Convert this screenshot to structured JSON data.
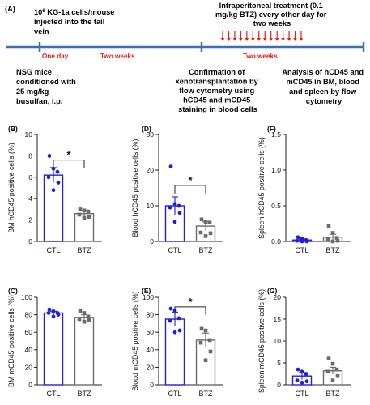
{
  "timeline": {
    "panel_label": "(A)",
    "injection_lines": [
      "10",
      "6",
      " KG-1a cells/mouse",
      "injected into the tail",
      "vein"
    ],
    "treatment_lines": [
      "Intraperitoneal treatment (0.1",
      "mg/kg BTZ) every other day for",
      "two weeks"
    ],
    "step1_lines": [
      "NSG mice",
      "conditioned with",
      "25 mg/kg",
      "busulfan, i.p."
    ],
    "interval1": "One day",
    "interval2": "Two weeks",
    "step2_lines": [
      "Confirmation of",
      "xenotransplantation by",
      "flow cytometry using",
      "hCD45 and mCD45",
      "staining in blood cells"
    ],
    "interval3": "Two weeks",
    "step3_lines": [
      "Analysis of hCD45 and",
      "mCD45 in BM, blood",
      "and spleen by flow",
      "cytometry"
    ],
    "line_color": "#3d6fb4",
    "arrow_color": "#e0201b",
    "interval_color": "#e0201b",
    "arrow_count": 14
  },
  "chart_data": [
    {
      "id": "B",
      "panel_label": "(B)",
      "type": "bar",
      "ylabel": "BM hCD45 positive cells (%)",
      "ylim": [
        0,
        10
      ],
      "yticks": [
        0,
        2,
        4,
        6,
        8,
        10
      ],
      "categories": [
        "CTL",
        "BTZ"
      ],
      "series": [
        {
          "values": [
            6.2,
            2.6
          ],
          "error": [
            0.7,
            0.3
          ]
        }
      ],
      "points": [
        [
          8.0,
          6.8,
          6.5,
          6.0,
          5.5,
          4.8
        ],
        [
          3.0,
          2.9,
          2.8,
          2.5,
          2.3,
          2.2
        ]
      ],
      "significance": {
        "label": "*",
        "pairs": [
          "CTL",
          "BTZ"
        ],
        "at": 7.6
      }
    },
    {
      "id": "D",
      "panel_label": "(D)",
      "type": "bar",
      "ylabel": "Blood hCD45 positive cells (%)",
      "ylim": [
        0,
        30
      ],
      "yticks": [
        0,
        10,
        20,
        30
      ],
      "categories": [
        "CTL",
        "BTZ"
      ],
      "series": [
        {
          "values": [
            10.0,
            4.3
          ],
          "error": [
            2.5,
            1.2
          ]
        }
      ],
      "points": [
        [
          21.0,
          10.5,
          10.0,
          9.5,
          8.0,
          5.5
        ],
        [
          6.2,
          5.5,
          5.3,
          2.5,
          2.3,
          1.5
        ]
      ],
      "significance": {
        "label": "*",
        "pairs": [
          "CTL",
          "BTZ"
        ],
        "at": 15.7
      }
    },
    {
      "id": "F",
      "panel_label": "(F)",
      "type": "bar",
      "ylabel": "Spleen hCD45 positive cells (%)",
      "ylim": [
        0,
        1.5
      ],
      "yticks": [
        "0.0",
        "0.5",
        "1.0",
        "1.5"
      ],
      "categories": [
        "CTL",
        "BTZ"
      ],
      "series": [
        {
          "values": [
            0.02,
            0.06
          ],
          "error": [
            0.015,
            0.04
          ]
        }
      ],
      "points": [
        [
          0.06,
          0.04,
          0.02,
          0.01,
          0.0,
          0.0
        ],
        [
          0.22,
          0.12,
          0.05,
          0.03,
          0.01,
          0.0
        ]
      ],
      "significance": null
    },
    {
      "id": "C",
      "panel_label": "(C)",
      "type": "bar",
      "ylabel": "BM mCD45 positive cells (%)",
      "ylim": [
        0,
        100
      ],
      "yticks": [
        0,
        20,
        40,
        60,
        80,
        100
      ],
      "categories": [
        "CTL",
        "BTZ"
      ],
      "series": [
        {
          "values": [
            82,
            77
          ],
          "error": [
            2,
            3
          ]
        }
      ],
      "points": [
        [
          86,
          84,
          82,
          82,
          80,
          78
        ],
        [
          84,
          82,
          78,
          75,
          74,
          72
        ]
      ],
      "significance": null
    },
    {
      "id": "E",
      "panel_label": "(E)",
      "type": "bar",
      "ylabel": "Blood mCD45 positive cells (%)",
      "ylim": [
        0,
        100
      ],
      "yticks": [
        0,
        20,
        40,
        60,
        80,
        100
      ],
      "categories": [
        "CTL",
        "BTZ"
      ],
      "series": [
        {
          "values": [
            75,
            51
          ],
          "error": [
            8,
            8
          ]
        }
      ],
      "points": [
        [
          87,
          85,
          76,
          73,
          62,
          60
        ],
        [
          64,
          62,
          51,
          48,
          38,
          28
        ]
      ],
      "significance": {
        "label": "*",
        "pairs": [
          "CTL",
          "BTZ"
        ],
        "at": 89
      }
    },
    {
      "id": "G",
      "panel_label": "(G)",
      "type": "bar",
      "ylabel": "Spleen mCD45 positive cells (%)",
      "ylim": [
        0,
        20
      ],
      "yticks": [
        0,
        5,
        10,
        15,
        20
      ],
      "categories": [
        "CTL",
        "BTZ"
      ],
      "series": [
        {
          "values": [
            2.0,
            3.2
          ],
          "error": [
            0.8,
            0.8
          ]
        }
      ],
      "points": [
        [
          3.5,
          3.0,
          2.5,
          1.0,
          0.8,
          0.5
        ],
        [
          6.0,
          4.8,
          3.5,
          3.0,
          2.0,
          1.0
        ]
      ],
      "significance": null
    }
  ],
  "colors": {
    "ctl": "#1f1fd6",
    "btz": "#6b6b6b",
    "axis": "#222222",
    "text": "#111111"
  }
}
